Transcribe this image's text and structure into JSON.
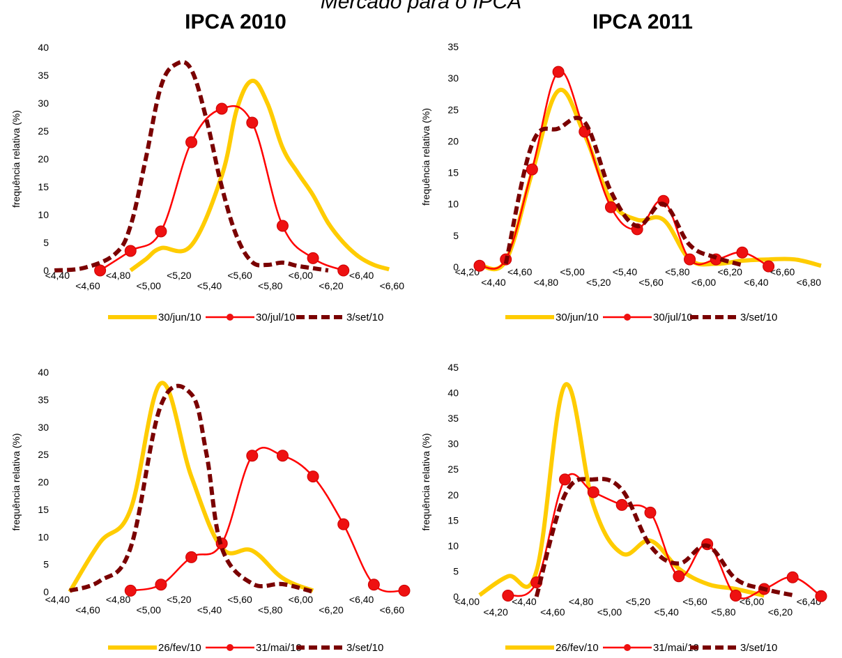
{
  "page_title": "Mercado para o IPCA",
  "column_titles": [
    "IPCA 2010",
    "IPCA 2011"
  ],
  "colors": {
    "yellow": "#FFCC00",
    "red": "#FF0000",
    "marker": "#EE1111",
    "dark_red": "#7A0000"
  },
  "chart_data": [
    {
      "type": "line",
      "id": "top-left",
      "ylabel": "frequência relativa (%)",
      "ylim": [
        0,
        40
      ],
      "yticks": [
        0,
        5,
        10,
        15,
        20,
        25,
        30,
        35,
        40
      ],
      "x_categories": [
        "<4,40",
        "<4,60",
        "<4,80",
        "<5,00",
        "<5,20",
        "<5,40",
        "<5,60",
        "<5,80",
        "<6,00",
        "<6,20",
        "<6,40",
        "<6,60"
      ],
      "series": [
        {
          "name": "30/jun/10",
          "style": "yellow",
          "x": [
            4.8,
            4.9,
            5.0,
            5.2,
            5.4,
            5.5,
            5.6,
            5.7,
            5.8,
            5.9,
            6.0,
            6.1,
            6.2,
            6.3,
            6.4,
            6.5
          ],
          "values": [
            0,
            2.0,
            4.0,
            4.5,
            17.0,
            29.0,
            34.0,
            30.0,
            22.0,
            17.5,
            13.5,
            8.5,
            5.0,
            2.5,
            1.0,
            0.2
          ]
        },
        {
          "name": "30/jul/10",
          "style": "red-marker",
          "x": [
            4.6,
            4.8,
            5.0,
            5.2,
            5.4,
            5.6,
            5.8,
            6.0,
            6.2
          ],
          "values": [
            0,
            3.5,
            7.0,
            23.0,
            29.0,
            26.5,
            8.0,
            2.2,
            0
          ]
        },
        {
          "name": "3/set/10",
          "style": "dark-dashed",
          "x": [
            4.3,
            4.5,
            4.7,
            4.8,
            4.9,
            5.0,
            5.1,
            5.2,
            5.3,
            5.4,
            5.5,
            5.6,
            5.7,
            5.8,
            5.9,
            6.0,
            6.1
          ],
          "values": [
            0,
            0.5,
            3.0,
            8.0,
            20.0,
            33.0,
            37.0,
            36.0,
            27.0,
            15.0,
            6.0,
            1.5,
            1.0,
            1.4,
            0.8,
            0.4,
            0
          ]
        }
      ]
    },
    {
      "type": "line",
      "id": "top-right",
      "ylabel": "frequência relativa (%)",
      "ylim": [
        0,
        35
      ],
      "yticks": [
        0,
        5,
        10,
        15,
        20,
        25,
        30,
        35
      ],
      "x_categories": [
        "<4,20",
        "<4,40",
        "<4,60",
        "<4,80",
        "<5,00",
        "<5,20",
        "<5,40",
        "<5,60",
        "<5,80",
        "<6,00",
        "<6,20",
        "<6,40",
        "<6,60",
        "<6,80"
      ],
      "series": [
        {
          "name": "30/jun/10",
          "style": "yellow",
          "x": [
            4.2,
            4.4,
            4.6,
            4.8,
            5.0,
            5.2,
            5.4,
            5.6,
            5.8,
            6.0,
            6.2,
            6.4,
            6.6,
            6.8
          ],
          "values": [
            0.3,
            1.0,
            15.0,
            28.0,
            21.0,
            10.5,
            7.5,
            7.5,
            1.2,
            0.5,
            1.0,
            1.2,
            1.2,
            0.2
          ]
        },
        {
          "name": "30/jul/10",
          "style": "red-marker",
          "x": [
            4.2,
            4.4,
            4.6,
            4.8,
            5.0,
            5.2,
            5.4,
            5.6,
            5.8,
            6.0,
            6.2,
            6.4
          ],
          "values": [
            0.2,
            1.2,
            15.5,
            31.0,
            21.5,
            9.5,
            6.0,
            10.5,
            1.2,
            1.2,
            2.3,
            0.1
          ]
        },
        {
          "name": "3/set/10",
          "style": "dark-dashed",
          "x": [
            4.4,
            4.6,
            4.8,
            5.0,
            5.2,
            5.4,
            5.6,
            5.8,
            6.0,
            6.2
          ],
          "values": [
            0.5,
            19.5,
            22.0,
            23.0,
            12.0,
            6.5,
            10.0,
            3.5,
            1.5,
            0.3
          ]
        }
      ]
    },
    {
      "type": "line",
      "id": "bottom-left",
      "ylabel": "frequência relativa (%)",
      "ylim": [
        0,
        40
      ],
      "yticks": [
        0,
        5,
        10,
        15,
        20,
        25,
        30,
        35,
        40
      ],
      "x_categories": [
        "<4,40",
        "<4,60",
        "<4,80",
        "<5,00",
        "<5,20",
        "<5,40",
        "<5,60",
        "<5,80",
        "<6,00",
        "<6,20",
        "<6,40",
        "<6,60"
      ],
      "series": [
        {
          "name": "26/fev/10",
          "style": "yellow",
          "x": [
            4.4,
            4.6,
            4.8,
            5.0,
            5.2,
            5.4,
            5.6,
            5.8,
            6.0
          ],
          "values": [
            0,
            9.0,
            15.0,
            38.0,
            21.0,
            8.0,
            7.5,
            2.5,
            0.2
          ]
        },
        {
          "name": "31/mai/10",
          "style": "red-marker",
          "x": [
            4.8,
            5.0,
            5.2,
            5.4,
            5.6,
            5.8,
            6.0,
            6.2,
            6.4,
            6.6
          ],
          "values": [
            0.2,
            1.3,
            6.3,
            8.8,
            24.8,
            24.8,
            21.0,
            12.3,
            1.3,
            0.2
          ]
        },
        {
          "name": "3/set/10",
          "style": "dark-dashed",
          "x": [
            4.4,
            4.6,
            4.8,
            5.0,
            5.2,
            5.3,
            5.4,
            5.6,
            5.8,
            6.0
          ],
          "values": [
            0.2,
            2.0,
            8.0,
            34.0,
            36.0,
            25.0,
            8.0,
            1.5,
            1.4,
            0
          ]
        }
      ]
    },
    {
      "type": "line",
      "id": "bottom-right",
      "ylabel": "frequência relativa (%)",
      "ylim": [
        0,
        45
      ],
      "yticks": [
        0,
        5,
        10,
        15,
        20,
        25,
        30,
        35,
        40,
        45
      ],
      "x_categories": [
        "<4,00",
        "<4,20",
        "<4,40",
        "<4,60",
        "<4,80",
        "<5,00",
        "<5,20",
        "<5,40",
        "<5,60",
        "<5,80",
        "<6,00",
        "<6,20",
        "<6,40"
      ],
      "series": [
        {
          "name": "26/fev/10",
          "style": "yellow",
          "x": [
            4.0,
            4.2,
            4.4,
            4.6,
            4.8,
            5.0,
            5.2,
            5.4,
            5.6,
            5.8,
            6.0
          ],
          "values": [
            0.3,
            4.0,
            5.0,
            41.5,
            18.0,
            8.5,
            11.0,
            5.5,
            2.5,
            1.5,
            0.2
          ]
        },
        {
          "name": "31/mai/10",
          "style": "red-marker",
          "x": [
            4.2,
            4.4,
            4.6,
            4.8,
            5.0,
            5.2,
            5.4,
            5.6,
            5.8,
            6.0,
            6.2,
            6.4
          ],
          "values": [
            0.2,
            2.8,
            23.0,
            20.5,
            18.0,
            16.5,
            4.0,
            10.3,
            0.2,
            1.5,
            3.8,
            0.1
          ]
        },
        {
          "name": "3/set/10",
          "style": "dark-dashed",
          "x": [
            4.4,
            4.6,
            4.8,
            5.0,
            5.2,
            5.4,
            5.6,
            5.8,
            6.0,
            6.2
          ],
          "values": [
            0,
            20.0,
            23.0,
            21.0,
            10.0,
            6.5,
            10.0,
            3.5,
            1.5,
            0.3
          ]
        }
      ]
    }
  ]
}
